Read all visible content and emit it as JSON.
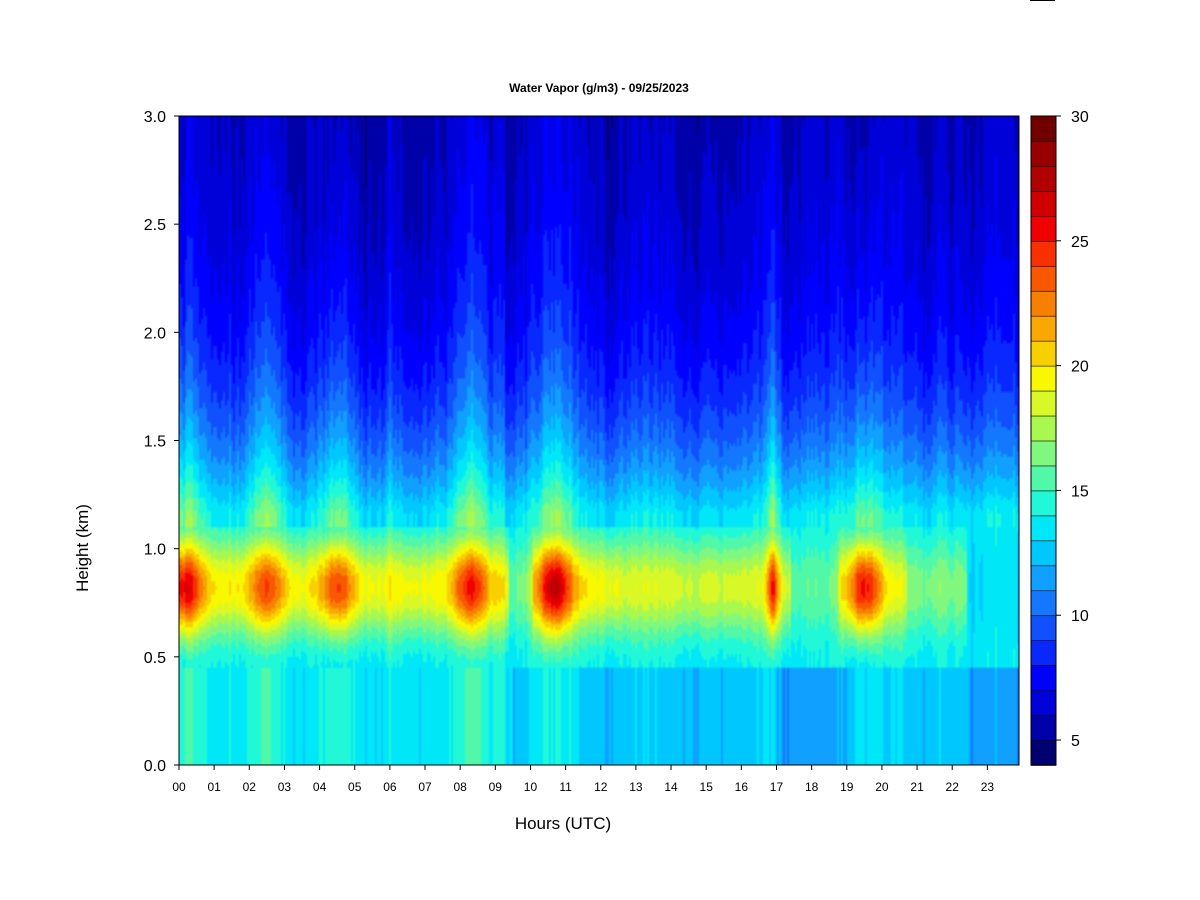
{
  "chart_data": {
    "type": "heatmap",
    "title": "Water Vapor (g/m3) - 09/25/2023",
    "xlabel": "Hours (UTC)",
    "ylabel": "Height (km)",
    "x_ticks": [
      "00",
      "01",
      "02",
      "03",
      "04",
      "05",
      "06",
      "07",
      "08",
      "09",
      "10",
      "11",
      "12",
      "13",
      "14",
      "15",
      "16",
      "17",
      "18",
      "19",
      "20",
      "21",
      "22",
      "23"
    ],
    "xlim": [
      0,
      23.9
    ],
    "y_ticks": [
      "0.0",
      "0.5",
      "1.0",
      "1.5",
      "2.0",
      "2.5",
      "3.0"
    ],
    "ylim": [
      0,
      3.0
    ],
    "colorbar": {
      "ticks": [
        "5",
        "10",
        "15",
        "20",
        "25",
        "30"
      ],
      "min": 4,
      "max": 30,
      "colors": [
        "#000070",
        "#0000a8",
        "#0000d8",
        "#0000ff",
        "#0828ff",
        "#1050ff",
        "#1478ff",
        "#10a0ff",
        "#00c8ff",
        "#00e8f8",
        "#20f8d8",
        "#50f8a8",
        "#80f880",
        "#a8f850",
        "#d8f828",
        "#f8f800",
        "#f8d000",
        "#f8a800",
        "#f88000",
        "#f85800",
        "#f83000",
        "#f00000",
        "#d00000",
        "#b00000",
        "#980000",
        "#700000"
      ]
    },
    "humid_layer": {
      "height_km": [
        0.45,
        1.1
      ],
      "peak_km": 0.82,
      "events": [
        {
          "hour": 0.2,
          "value": 26
        },
        {
          "hour": 2.5,
          "value": 24
        },
        {
          "hour": 4.5,
          "value": 24.5
        },
        {
          "hour": 8.3,
          "value": 25
        },
        {
          "hour": 10.7,
          "value": 27
        },
        {
          "hour": 16.9,
          "value": 25
        },
        {
          "hour": 19.5,
          "value": 26
        }
      ]
    },
    "grid": false,
    "legend": "colorbar-right"
  }
}
